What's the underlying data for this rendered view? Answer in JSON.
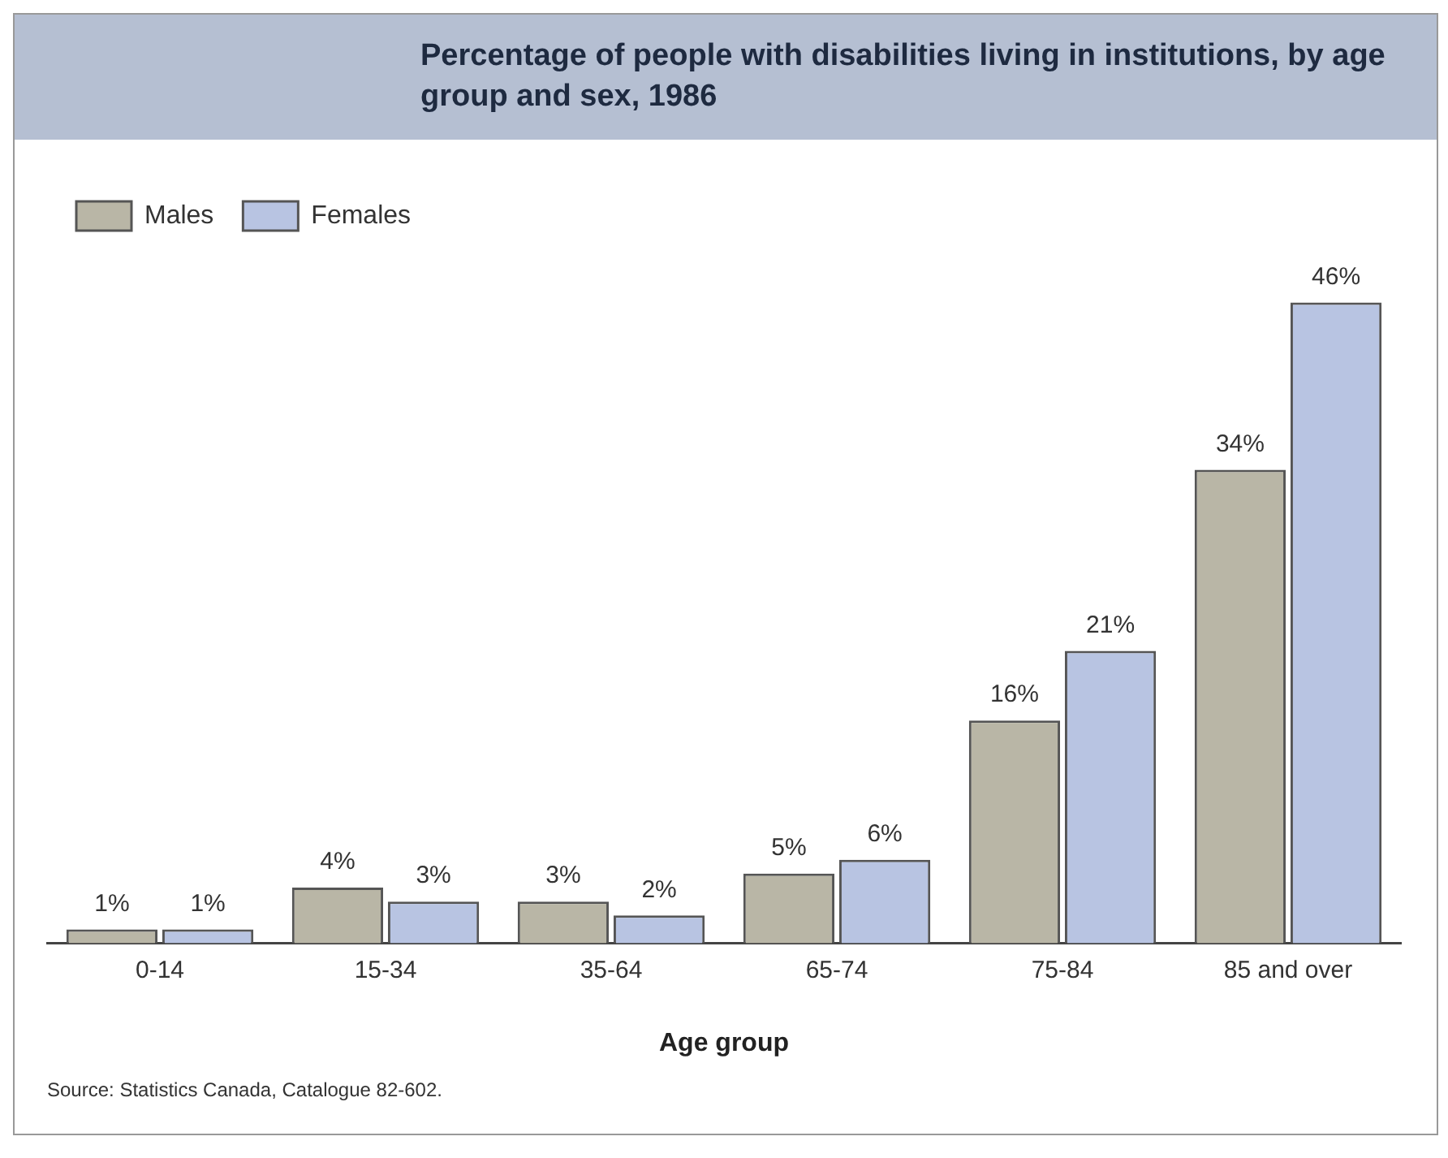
{
  "chart_data": {
    "type": "bar",
    "title": "Percentage of people with disabilities living in institutions, by age group and sex, 1986",
    "xlabel": "Age group",
    "categories": [
      "0-14",
      "15-34",
      "35-64",
      "65-74",
      "75-84",
      "85 and over"
    ],
    "series": [
      {
        "name": "Males",
        "color": "#b9b6a6",
        "values": [
          1,
          4,
          3,
          5,
          16,
          34
        ],
        "value_labels": [
          "1%",
          "4%",
          "3%",
          "5%",
          "16%",
          "34%"
        ]
      },
      {
        "name": "Females",
        "color": "#b8c4e2",
        "values": [
          1,
          3,
          2,
          6,
          21,
          46
        ],
        "value_labels": [
          "1%",
          "3%",
          "2%",
          "6%",
          "21%",
          "46%"
        ]
      }
    ],
    "legend": "top left",
    "grid": false,
    "annotations": [
      "Source: Statistics Canada, Catalogue 82-602."
    ]
  }
}
